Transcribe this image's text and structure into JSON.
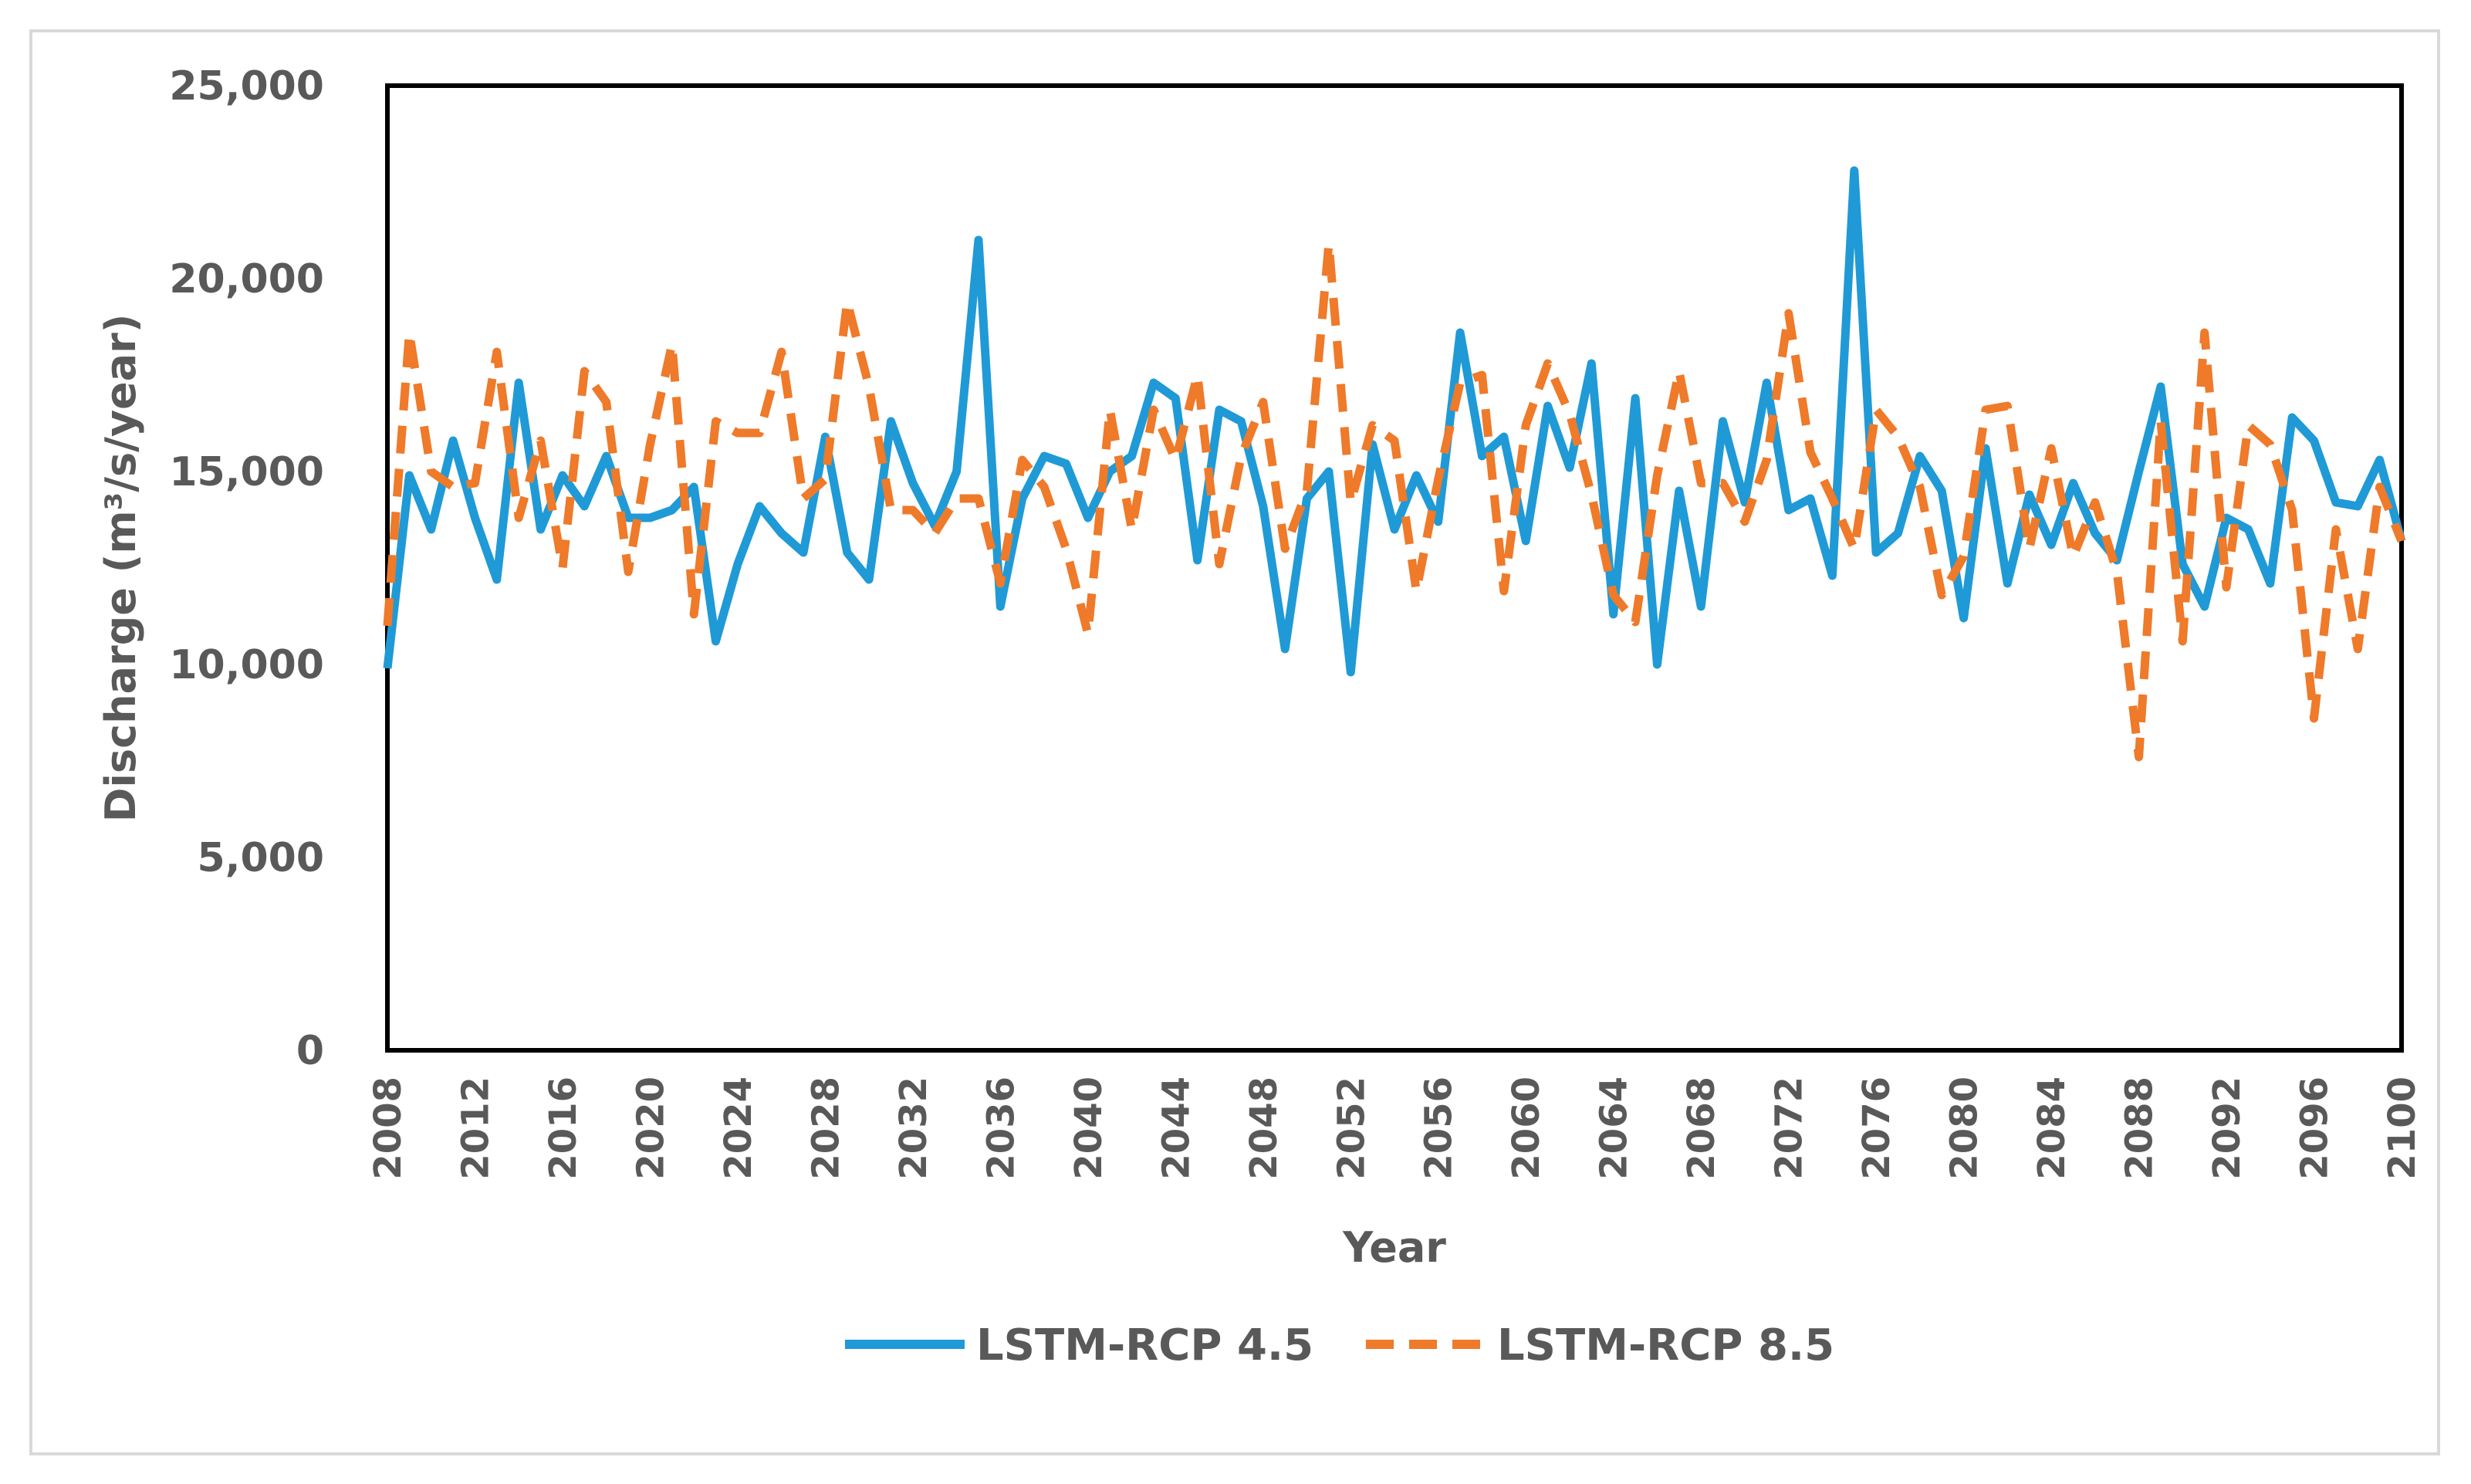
{
  "chart_data": {
    "type": "line",
    "title": "",
    "xlabel": "Year",
    "ylabel": "Discharge (m³/s/year)",
    "ylim": [
      0,
      25000
    ],
    "xlim": [
      2008,
      2100
    ],
    "y_ticks": [
      "0",
      "5,000",
      "10,000",
      "15,000",
      "20,000",
      "25,000"
    ],
    "y_tick_values": [
      0,
      5000,
      10000,
      15000,
      20000,
      25000
    ],
    "x_ticks": [
      "2008",
      "2012",
      "2016",
      "2020",
      "2024",
      "2028",
      "2032",
      "2036",
      "2040",
      "2044",
      "2048",
      "2052",
      "2056",
      "2060",
      "2064",
      "2068",
      "2072",
      "2076",
      "2080",
      "2084",
      "2088",
      "2092",
      "2096",
      "2100"
    ],
    "x_tick_values": [
      2008,
      2012,
      2016,
      2020,
      2024,
      2028,
      2032,
      2036,
      2040,
      2044,
      2048,
      2052,
      2056,
      2060,
      2064,
      2068,
      2072,
      2076,
      2080,
      2084,
      2088,
      2092,
      2096,
      2100
    ],
    "grid": false,
    "legend_position": "bottom",
    "x": [
      2008,
      2009,
      2010,
      2011,
      2012,
      2013,
      2014,
      2015,
      2016,
      2017,
      2018,
      2019,
      2020,
      2021,
      2022,
      2023,
      2024,
      2025,
      2026,
      2027,
      2028,
      2029,
      2030,
      2031,
      2032,
      2033,
      2034,
      2035,
      2036,
      2037,
      2038,
      2039,
      2040,
      2041,
      2042,
      2043,
      2044,
      2045,
      2046,
      2047,
      2048,
      2049,
      2050,
      2051,
      2052,
      2053,
      2054,
      2055,
      2056,
      2057,
      2058,
      2059,
      2060,
      2061,
      2062,
      2063,
      2064,
      2065,
      2066,
      2067,
      2068,
      2069,
      2070,
      2071,
      2072,
      2073,
      2074,
      2075,
      2076,
      2077,
      2078,
      2079,
      2080,
      2081,
      2082,
      2083,
      2084,
      2085,
      2086,
      2087,
      2088,
      2089,
      2090,
      2091,
      2092,
      2093,
      2094,
      2095,
      2096,
      2097,
      2098,
      2099,
      2100
    ],
    "series": [
      {
        "name": "LSTM-RCP 4.5",
        "color": "#1f9ad6",
        "style": "solid",
        "values": [
          9900,
          14900,
          13500,
          15800,
          13800,
          12200,
          17300,
          13500,
          14900,
          14100,
          15400,
          13800,
          13800,
          14000,
          14600,
          10600,
          12600,
          14100,
          13400,
          12900,
          15900,
          12900,
          12200,
          16300,
          14700,
          13600,
          15000,
          21000,
          11500,
          14300,
          15400,
          15200,
          13800,
          15000,
          15400,
          17300,
          16900,
          12700,
          16600,
          16300,
          14100,
          10400,
          14300,
          15000,
          9800,
          15700,
          13500,
          14900,
          13700,
          18600,
          15400,
          15900,
          13200,
          16700,
          15100,
          17800,
          11300,
          16900,
          10000,
          14500,
          11500,
          16300,
          14200,
          17300,
          14000,
          14300,
          12300,
          22800,
          12900,
          13400,
          15400,
          14500,
          11200,
          15600,
          12100,
          14400,
          13100,
          14700,
          13400,
          12700,
          15000,
          17200,
          12600,
          11500,
          13800,
          13500,
          12100,
          16400,
          15800,
          14200,
          14100,
          15300,
          13200
        ]
      },
      {
        "name": "LSTM-RCP 8.5",
        "color": "#ee7a2a",
        "style": "dashed",
        "values": [
          11000,
          18600,
          15000,
          14600,
          14700,
          18100,
          13800,
          15800,
          12500,
          17600,
          16800,
          12400,
          15700,
          18300,
          11300,
          16300,
          16000,
          16000,
          18100,
          14300,
          14800,
          19400,
          17200,
          14000,
          14000,
          13400,
          14300,
          14300,
          12100,
          15300,
          14600,
          13000,
          10800,
          16600,
          13500,
          16600,
          15300,
          17500,
          12600,
          15400,
          16800,
          13000,
          14500,
          20900,
          14200,
          16200,
          15800,
          11900,
          14800,
          17300,
          17500,
          11900,
          16200,
          17800,
          16500,
          14400,
          11800,
          11100,
          14900,
          17600,
          14700,
          14700,
          13700,
          15300,
          19100,
          15500,
          14300,
          13000,
          16600,
          15900,
          14600,
          11800,
          12800,
          16600,
          16700,
          13000,
          15600,
          12800,
          14200,
          12400,
          7600,
          16300,
          10600,
          18600,
          12000,
          16200,
          15700,
          14000,
          8600,
          13500,
          10400,
          14600,
          13200
        ]
      }
    ]
  }
}
